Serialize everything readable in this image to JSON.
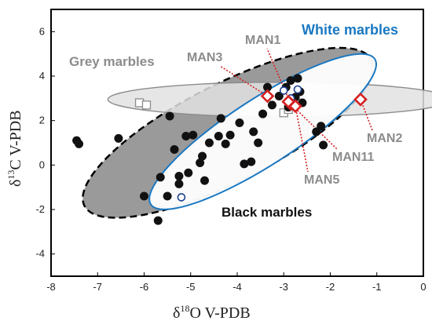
{
  "chart_data": {
    "type": "scatter",
    "x_axis": {
      "title_prefix": "δ",
      "title_sup": "18",
      "title_main": "O  V-PDB",
      "lim": [
        -8,
        0
      ],
      "ticks": [
        "-8",
        "-7",
        "-6",
        "-5",
        "-4",
        "-3",
        "-2",
        "-1",
        "0"
      ]
    },
    "y_axis": {
      "title_prefix": "δ",
      "title_sup": "13",
      "title_main": "C  V-PDB",
      "lim": [
        -5,
        7
      ],
      "ticks": [
        "-4",
        "-2",
        "0",
        "2",
        "4",
        "6"
      ]
    },
    "groups": {
      "white": {
        "label": "White marbles",
        "color": "#1a78c2"
      },
      "grey": {
        "label": "Grey marbles",
        "color": "#8c8c8c"
      },
      "black": {
        "label": "Black marbles",
        "color": "#111111"
      }
    },
    "black_points": [
      [
        -7.45,
        1.1
      ],
      [
        -7.4,
        0.95
      ],
      [
        -6.55,
        1.2
      ],
      [
        -6.0,
        -1.4
      ],
      [
        -5.7,
        -2.5
      ],
      [
        -5.65,
        -0.55
      ],
      [
        -5.5,
        -1.4
      ],
      [
        -5.45,
        2.2
      ],
      [
        -5.35,
        0.7
      ],
      [
        -5.25,
        -0.5
      ],
      [
        -5.25,
        -0.85
      ],
      [
        -5.1,
        1.3
      ],
      [
        -5.05,
        -0.35
      ],
      [
        -4.95,
        1.35
      ],
      [
        -4.8,
        0.1
      ],
      [
        -4.75,
        0.4
      ],
      [
        -4.7,
        -0.7
      ],
      [
        -4.6,
        1.0
      ],
      [
        -4.4,
        1.3
      ],
      [
        -4.35,
        2.1
      ],
      [
        -4.25,
        0.95
      ],
      [
        -4.15,
        1.35
      ],
      [
        -3.95,
        1.9
      ],
      [
        -3.85,
        0.05
      ],
      [
        -3.7,
        0.15
      ],
      [
        -3.65,
        1.5
      ],
      [
        -3.55,
        1.0
      ],
      [
        -3.45,
        2.3
      ],
      [
        -3.35,
        3.5
      ],
      [
        -3.25,
        2.7
      ],
      [
        -3.1,
        3.1
      ],
      [
        -2.95,
        3.5
      ],
      [
        -2.9,
        2.6
      ],
      [
        -2.85,
        3.8
      ],
      [
        -2.75,
        3.05
      ],
      [
        -2.7,
        3.9
      ],
      [
        -2.65,
        3.3
      ],
      [
        -2.6,
        2.8
      ],
      [
        -2.3,
        1.5
      ],
      [
        -2.2,
        1.75
      ],
      [
        -2.15,
        0.9
      ]
    ],
    "white_points": [
      [
        -5.2,
        -1.45
      ],
      [
        -3.0,
        3.35
      ],
      [
        -2.85,
        3.0
      ],
      [
        -2.7,
        3.4
      ]
    ],
    "grey_points": [
      [
        -6.1,
        2.8
      ],
      [
        -5.95,
        2.7
      ],
      [
        -3.0,
        2.35
      ],
      [
        -2.9,
        2.5
      ],
      [
        -2.75,
        2.8
      ]
    ],
    "man_samples": [
      {
        "name": "MAN1",
        "x": -2.85,
        "y": 2.75
      },
      {
        "name": "MAN2",
        "x": -1.35,
        "y": 2.95
      },
      {
        "name": "MAN3",
        "x": -3.35,
        "y": 3.1
      },
      {
        "name": "MAN5",
        "x": -2.75,
        "y": 2.65
      },
      {
        "name": "MAN11",
        "x": -2.9,
        "y": 2.85
      }
    ]
  },
  "labels": {
    "white": "White marbles",
    "grey": "Grey marbles",
    "black": "Black marbles",
    "man1": "MAN1",
    "man2": "MAN2",
    "man3": "MAN3",
    "man5": "MAN5",
    "man11": "MAN11"
  }
}
